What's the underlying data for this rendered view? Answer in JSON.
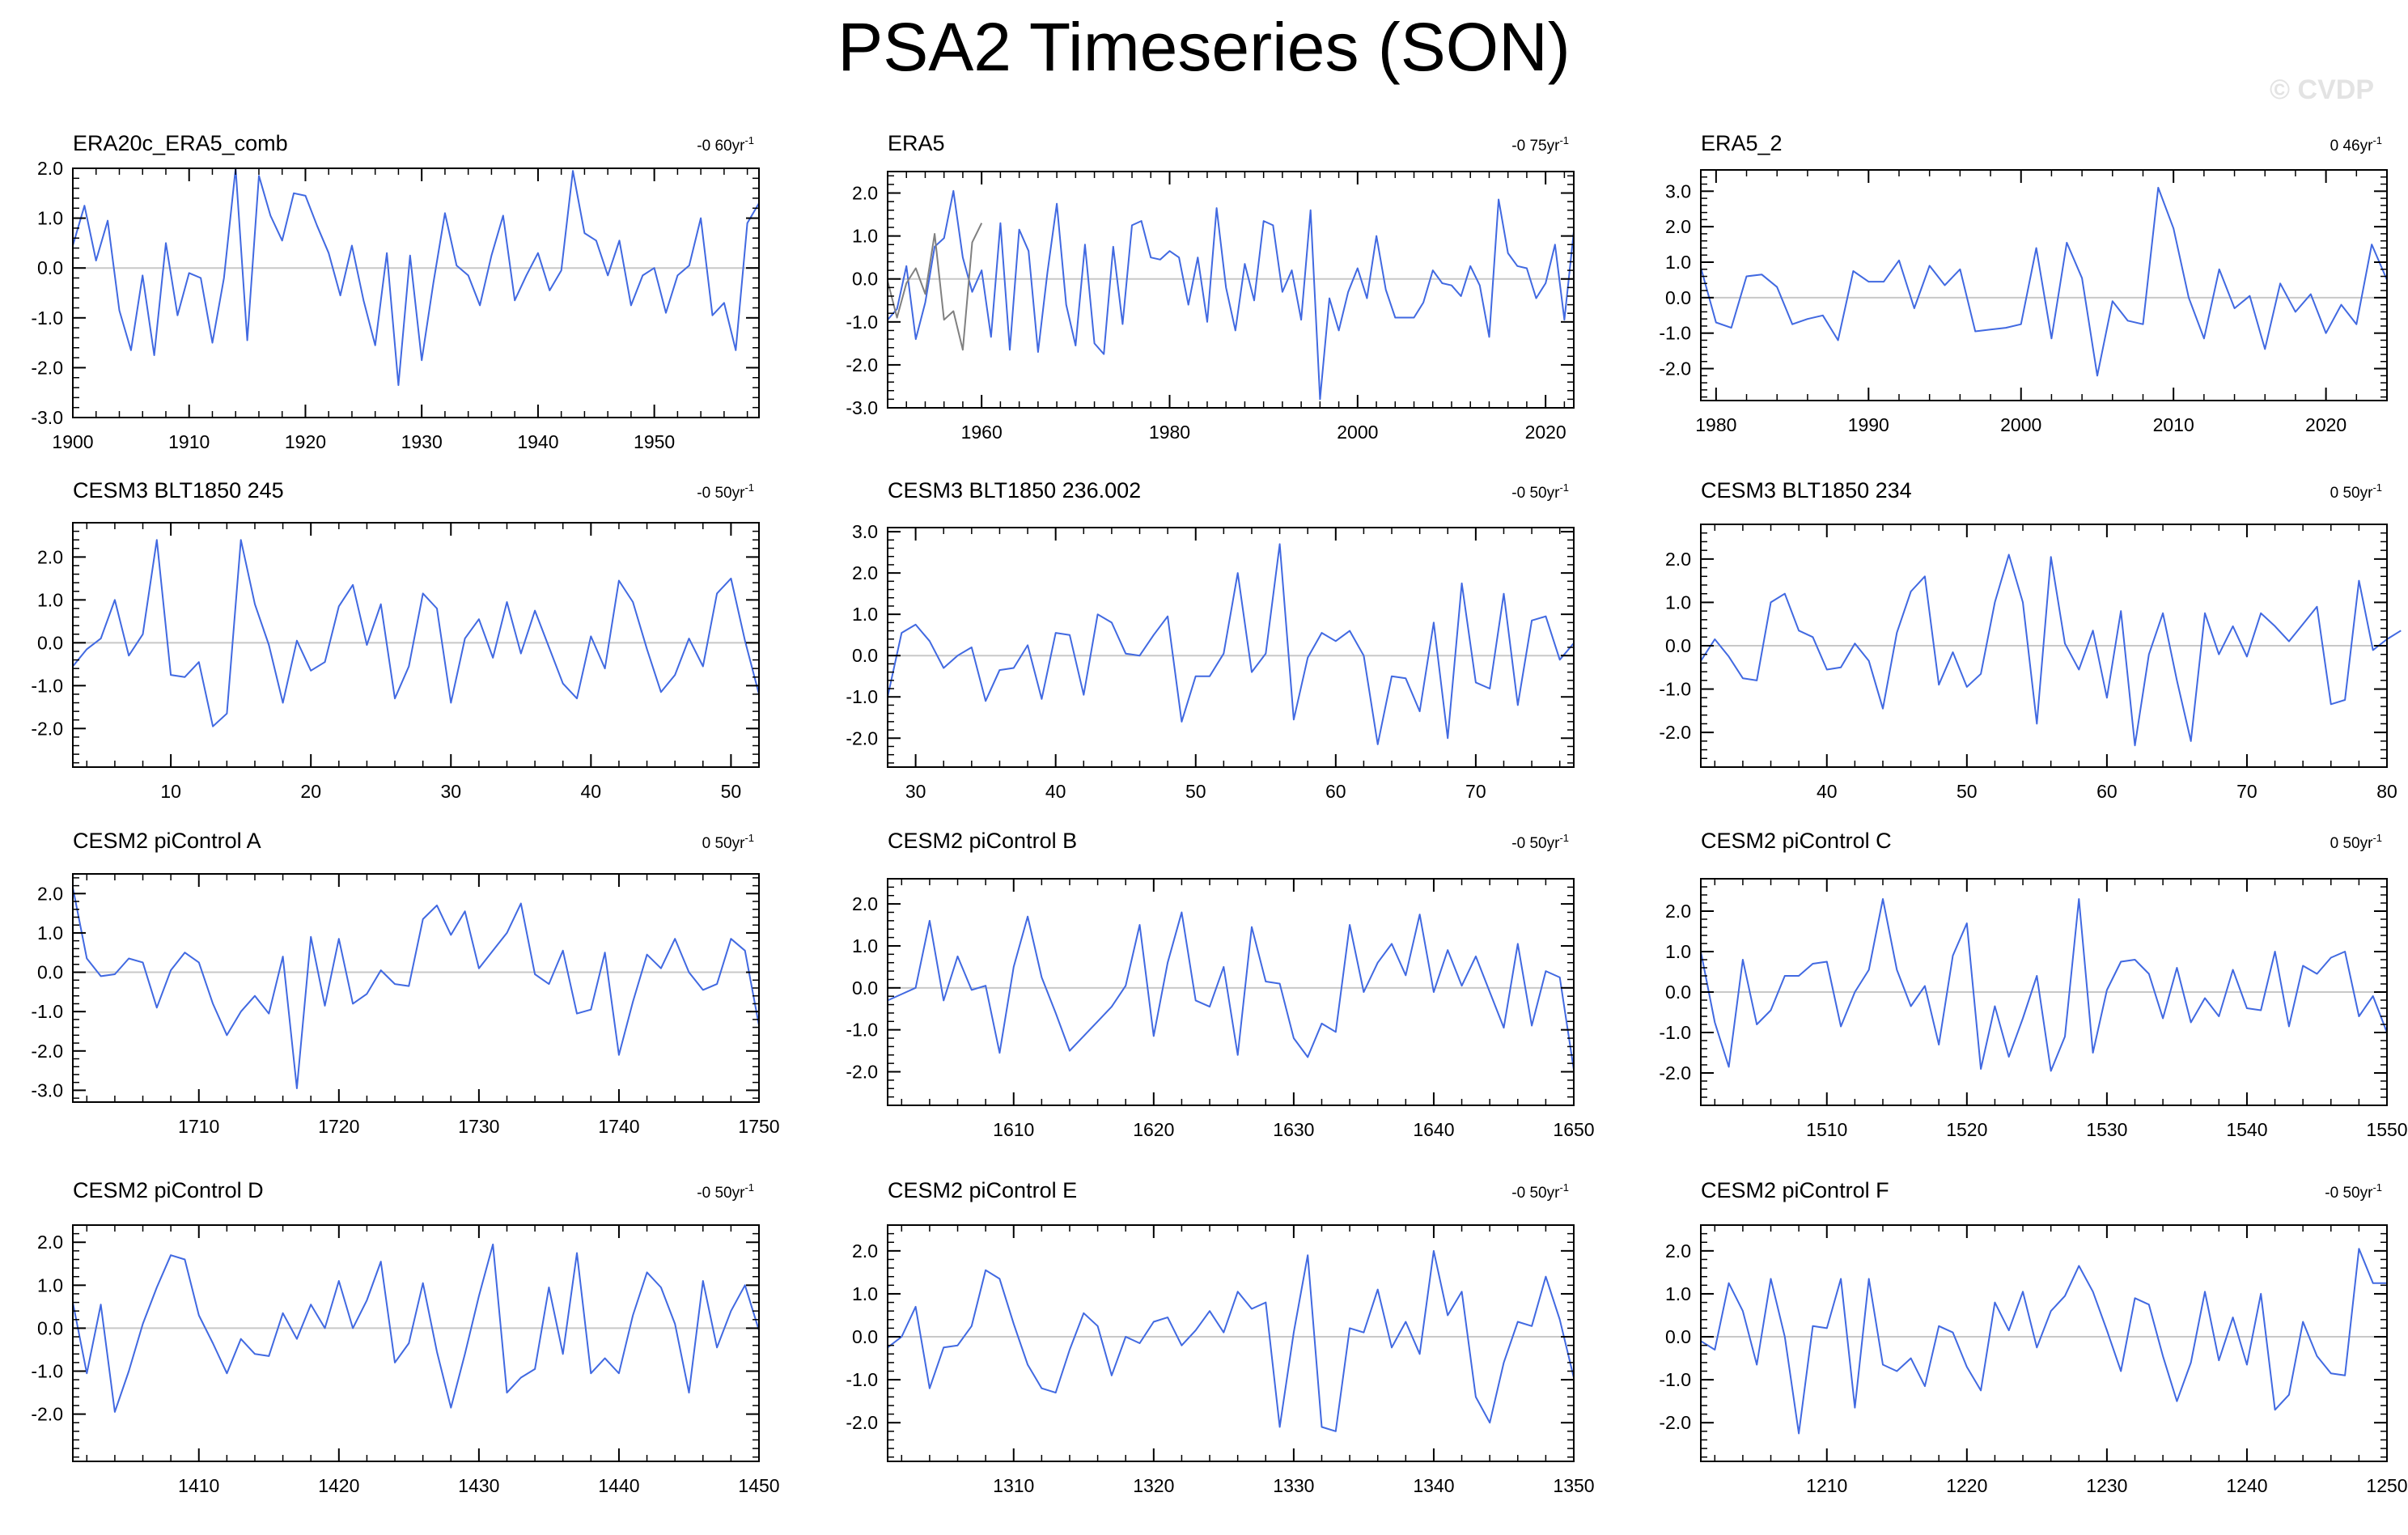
{
  "title": "PSA2 Timeseries (SON)",
  "watermark": "© CVDP",
  "colors": {
    "series": "#4169e1",
    "secondary": "#808080",
    "zero_line": "#c8c8c8",
    "axis": "#000000"
  },
  "chart_data": [
    {
      "type": "line",
      "title": "ERA20c_ERA5_comb",
      "trend": {
        "value": "-0 60",
        "unit": "yr",
        "exp": "-1"
      },
      "xlim": [
        1900,
        1959
      ],
      "ylim": [
        -3,
        2
      ],
      "xticks": [
        1900,
        1910,
        1920,
        1930,
        1940,
        1950
      ],
      "yticks": [
        -3,
        -2,
        -1,
        0,
        1,
        2
      ],
      "series": [
        {
          "x_start": 1900,
          "x_step": 1,
          "color": "#4169e1",
          "values": [
            0.45,
            1.25,
            0.15,
            0.95,
            -0.85,
            -1.65,
            -0.15,
            -1.75,
            0.5,
            -0.95,
            -0.1,
            -0.2,
            -1.5,
            -0.2,
            2.0,
            -1.45,
            1.85,
            1.05,
            0.55,
            1.5,
            1.45,
            0.85,
            0.3,
            -0.55,
            0.45,
            -0.65,
            -1.55,
            0.3,
            -2.35,
            0.25,
            -1.85,
            -0.3,
            1.1,
            0.05,
            -0.15,
            -0.75,
            0.25,
            1.05,
            -0.65,
            -0.15,
            0.3,
            -0.45,
            -0.05,
            1.95,
            0.7,
            0.55,
            -0.15,
            0.55,
            -0.75,
            -0.15,
            0.0,
            -0.9,
            -0.15,
            0.05,
            1.0,
            -0.95,
            -0.7,
            -1.65,
            0.9,
            1.3
          ]
        }
      ]
    },
    {
      "type": "line",
      "title": "ERA5",
      "trend": {
        "value": "-0 75",
        "unit": "yr",
        "exp": "-1"
      },
      "xlim": [
        1950,
        2023
      ],
      "ylim": [
        -3,
        2.5
      ],
      "xticks": [
        1960,
        1980,
        2000,
        2020
      ],
      "yticks": [
        -3,
        -2,
        -1,
        0,
        1,
        2
      ],
      "series": [
        {
          "x_start": 1950,
          "x_step": 1,
          "color": "#4169e1",
          "values": [
            -0.95,
            -0.7,
            0.3,
            -1.4,
            -0.55,
            0.75,
            0.95,
            2.05,
            0.5,
            -0.3,
            0.2,
            -1.35,
            1.3,
            -1.65,
            1.15,
            0.65,
            -1.7,
            0.15,
            1.75,
            -0.6,
            -1.55,
            0.8,
            -1.5,
            -1.75,
            0.75,
            -1.05,
            1.25,
            1.35,
            0.5,
            0.45,
            0.65,
            0.5,
            -0.6,
            0.5,
            -1.0,
            1.65,
            -0.2,
            -1.2,
            0.35,
            -0.5,
            1.35,
            1.25,
            -0.3,
            0.2,
            -0.95,
            1.6,
            -2.8,
            -0.45,
            -1.2,
            -0.3,
            0.25,
            -0.45,
            1.0,
            -0.25,
            -0.9,
            -0.9,
            -0.9,
            -0.55,
            0.2,
            -0.1,
            -0.15,
            -0.4,
            0.3,
            -0.15,
            -1.35,
            1.85,
            0.6,
            0.3,
            0.25,
            -0.45,
            -0.1,
            0.8,
            -0.95,
            1.1
          ]
        },
        {
          "x_start": 1950,
          "x_step": 1,
          "color": "#808080",
          "values": [
            -0.05,
            -0.9,
            -0.1,
            0.25,
            -0.35,
            1.05,
            -0.95,
            -0.75,
            -1.65,
            0.85,
            1.3
          ]
        }
      ]
    },
    {
      "type": "line",
      "title": "ERA5_2",
      "trend": {
        "value": "0 46",
        "unit": "yr",
        "exp": "-1"
      },
      "xlim": [
        1979,
        2024
      ],
      "ylim": [
        -2.9,
        3.6
      ],
      "xticks": [
        1980,
        1990,
        2000,
        2010,
        2020
      ],
      "yticks": [
        -2,
        -1,
        0,
        1,
        2,
        3
      ],
      "series": [
        {
          "x_start": 1979,
          "x_step": 1,
          "color": "#4169e1",
          "values": [
            0.85,
            -0.7,
            -0.85,
            0.6,
            0.65,
            0.3,
            -0.75,
            -0.6,
            -0.5,
            -1.2,
            0.75,
            0.45,
            0.45,
            1.05,
            -0.3,
            0.9,
            0.35,
            0.8,
            -0.95,
            -0.9,
            -0.85,
            -0.75,
            1.4,
            -1.15,
            1.55,
            0.55,
            -2.2,
            -0.1,
            -0.65,
            -0.75,
            3.1,
            1.95,
            0.0,
            -1.15,
            0.8,
            -0.3,
            0.05,
            -1.45,
            0.4,
            -0.4,
            0.1,
            -1.0,
            -0.2,
            -0.75,
            1.5,
            0.5
          ]
        }
      ]
    },
    {
      "type": "line",
      "title": "CESM3 BLT1850 245",
      "trend": {
        "value": "-0 50",
        "unit": "yr",
        "exp": "-1"
      },
      "xlim": [
        3,
        52
      ],
      "ylim": [
        -2.9,
        2.8
      ],
      "xticks": [
        10,
        20,
        30,
        40,
        50
      ],
      "yticks": [
        -2,
        -1,
        0,
        1,
        2
      ],
      "series": [
        {
          "x_start": 3,
          "x_step": 1,
          "color": "#4169e1",
          "values": [
            -0.55,
            -0.15,
            0.1,
            1.0,
            -0.3,
            0.2,
            2.4,
            -0.75,
            -0.8,
            -0.45,
            -1.95,
            -1.65,
            2.4,
            0.9,
            -0.05,
            -1.4,
            0.05,
            -0.65,
            -0.45,
            0.85,
            1.35,
            -0.05,
            0.9,
            -1.3,
            -0.55,
            1.15,
            0.8,
            -1.4,
            0.1,
            0.55,
            -0.35,
            0.95,
            -0.25,
            0.75,
            -0.1,
            -0.95,
            -1.3,
            0.15,
            -0.6,
            1.45,
            0.95,
            -0.15,
            -1.15,
            -0.75,
            0.1,
            -0.55,
            1.15,
            1.5,
            0.05,
            -1.2
          ]
        }
      ]
    },
    {
      "type": "line",
      "title": "CESM3 BLT1850 236.002",
      "trend": {
        "value": "-0 50",
        "unit": "yr",
        "exp": "-1"
      },
      "xlim": [
        28,
        77
      ],
      "ylim": [
        -2.7,
        3.1
      ],
      "xticks": [
        30,
        40,
        50,
        60,
        70
      ],
      "yticks": [
        -2,
        -1,
        0,
        1,
        2,
        3
      ],
      "series": [
        {
          "x_start": 28,
          "x_step": 1,
          "color": "#4169e1",
          "values": [
            -1.0,
            0.55,
            0.75,
            0.35,
            -0.3,
            0.0,
            0.2,
            -1.1,
            -0.35,
            -0.3,
            0.25,
            -1.05,
            0.55,
            0.5,
            -0.95,
            1.0,
            0.8,
            0.05,
            0.0,
            0.5,
            0.95,
            -1.6,
            -0.5,
            -0.5,
            0.05,
            2.0,
            -0.4,
            0.05,
            2.7,
            -1.55,
            -0.05,
            0.55,
            0.35,
            0.6,
            0.0,
            -2.15,
            -0.5,
            -0.55,
            -1.35,
            0.8,
            -2.0,
            1.75,
            -0.65,
            -0.8,
            1.5,
            -1.2,
            0.85,
            0.95,
            -0.1,
            0.3
          ]
        }
      ]
    },
    {
      "type": "line",
      "title": "CESM3 BLT1850 234",
      "trend": {
        "value": "0 50",
        "unit": "yr",
        "exp": "-1"
      },
      "xlim": [
        31,
        80
      ],
      "ylim": [
        -2.8,
        2.8
      ],
      "xticks": [
        40,
        50,
        60,
        70,
        80
      ],
      "yticks": [
        -2,
        -1,
        0,
        1,
        2
      ],
      "series": [
        {
          "x_start": 31,
          "x_step": 1,
          "color": "#4169e1",
          "values": [
            -0.35,
            0.15,
            -0.25,
            -0.75,
            -0.8,
            1.0,
            1.2,
            0.35,
            0.2,
            -0.55,
            -0.5,
            0.05,
            -0.35,
            -1.45,
            0.3,
            1.25,
            1.6,
            -0.9,
            -0.15,
            -0.95,
            -0.65,
            1.0,
            2.1,
            1.0,
            -1.8,
            2.05,
            0.05,
            -0.55,
            0.35,
            -1.2,
            0.8,
            -2.3,
            -0.2,
            0.75,
            -0.8,
            -2.2,
            0.75,
            -0.2,
            0.45,
            -0.25,
            0.75,
            0.45,
            0.1,
            0.5,
            0.9,
            -1.35,
            -1.25,
            1.5,
            -0.1,
            0.15,
            0.35
          ]
        }
      ]
    },
    {
      "type": "line",
      "title": "CESM2 piControl A",
      "trend": {
        "value": "0 50",
        "unit": "yr",
        "exp": "-1"
      },
      "xlim": [
        1701,
        1750
      ],
      "ylim": [
        -3.3,
        2.5
      ],
      "xticks": [
        1710,
        1720,
        1730,
        1740,
        1750
      ],
      "yticks": [
        -3,
        -2,
        -1,
        0,
        1,
        2
      ],
      "series": [
        {
          "x_start": 1701,
          "x_step": 1,
          "color": "#4169e1",
          "values": [
            2.15,
            0.35,
            -0.1,
            -0.05,
            0.35,
            0.25,
            -0.9,
            0.05,
            0.5,
            0.25,
            -0.8,
            -1.6,
            -1.0,
            -0.6,
            -1.05,
            0.4,
            -2.95,
            0.9,
            -0.85,
            0.85,
            -0.8,
            -0.55,
            0.05,
            -0.3,
            -0.35,
            1.35,
            1.7,
            0.95,
            1.55,
            0.1,
            0.55,
            1.0,
            1.75,
            -0.05,
            -0.3,
            0.55,
            -1.05,
            -0.95,
            0.5,
            -2.1,
            -0.75,
            0.45,
            0.1,
            0.85,
            0.0,
            -0.45,
            -0.3,
            0.85,
            0.55,
            -1.35
          ]
        }
      ]
    },
    {
      "type": "line",
      "title": "CESM2 piControl B",
      "trend": {
        "value": "-0 50",
        "unit": "yr",
        "exp": "-1"
      },
      "xlim": [
        1601,
        1650
      ],
      "ylim": [
        -2.8,
        2.6
      ],
      "xticks": [
        1610,
        1620,
        1630,
        1640,
        1650
      ],
      "yticks": [
        -2,
        -1,
        0,
        1,
        2
      ],
      "series": [
        {
          "x_start": 1601,
          "x_step": 1,
          "color": "#4169e1",
          "values": [
            -0.3,
            -0.15,
            0.0,
            1.6,
            -0.3,
            0.75,
            -0.05,
            0.05,
            -1.55,
            0.5,
            1.7,
            0.25,
            -0.6,
            -1.5,
            -1.15,
            -0.8,
            -0.45,
            0.05,
            1.5,
            -1.15,
            0.6,
            1.8,
            -0.3,
            -0.45,
            0.5,
            -1.6,
            1.45,
            0.15,
            0.1,
            -1.2,
            -1.65,
            -0.85,
            -1.05,
            1.5,
            -0.1,
            0.6,
            1.05,
            0.3,
            1.75,
            -0.1,
            0.9,
            0.05,
            0.75,
            -0.1,
            -0.95,
            1.05,
            -0.9,
            0.4,
            0.25,
            -1.95
          ]
        }
      ]
    },
    {
      "type": "line",
      "title": "CESM2 piControl C",
      "trend": {
        "value": "0 50",
        "unit": "yr",
        "exp": "-1"
      },
      "xlim": [
        1501,
        1550
      ],
      "ylim": [
        -2.8,
        2.8
      ],
      "xticks": [
        1510,
        1520,
        1530,
        1540,
        1550
      ],
      "yticks": [
        -2,
        -1,
        0,
        1,
        2
      ],
      "series": [
        {
          "x_start": 1501,
          "x_step": 1,
          "color": "#4169e1",
          "values": [
            1.0,
            -0.75,
            -1.85,
            0.8,
            -0.8,
            -0.45,
            0.4,
            0.4,
            0.7,
            0.75,
            -0.85,
            0.0,
            0.55,
            2.3,
            0.55,
            -0.35,
            0.15,
            -1.3,
            0.9,
            1.7,
            -1.9,
            -0.35,
            -1.6,
            -0.65,
            0.4,
            -1.95,
            -1.1,
            2.3,
            -1.5,
            0.05,
            0.75,
            0.8,
            0.45,
            -0.65,
            0.6,
            -0.75,
            -0.15,
            -0.6,
            0.55,
            -0.4,
            -0.45,
            1.0,
            -0.85,
            0.65,
            0.45,
            0.85,
            1.0,
            -0.6,
            -0.1,
            -1.0
          ]
        }
      ]
    },
    {
      "type": "line",
      "title": "CESM2 piControl D",
      "trend": {
        "value": "-0 50",
        "unit": "yr",
        "exp": "-1"
      },
      "xlim": [
        1401,
        1450
      ],
      "ylim": [
        -3.1,
        2.4
      ],
      "xticks": [
        1410,
        1420,
        1430,
        1440,
        1450
      ],
      "yticks": [
        -2,
        -1,
        0,
        1,
        2
      ],
      "series": [
        {
          "x_start": 1401,
          "x_step": 1,
          "color": "#4169e1",
          "values": [
            0.6,
            -1.05,
            0.55,
            -1.95,
            -1.0,
            0.1,
            0.95,
            1.7,
            1.6,
            0.3,
            -0.35,
            -1.05,
            -0.25,
            -0.6,
            -0.65,
            0.35,
            -0.25,
            0.55,
            0.0,
            1.1,
            0.0,
            0.65,
            1.55,
            -0.8,
            -0.35,
            1.05,
            -0.55,
            -1.85,
            -0.6,
            0.75,
            1.95,
            -1.5,
            -1.15,
            -0.95,
            0.95,
            -0.6,
            1.75,
            -1.05,
            -0.7,
            -1.05,
            0.3,
            1.3,
            0.95,
            0.1,
            -1.5,
            1.1,
            -0.45,
            0.4,
            1.0,
            -0.05
          ]
        }
      ]
    },
    {
      "type": "line",
      "title": "CESM2 piControl E",
      "trend": {
        "value": "-0 50",
        "unit": "yr",
        "exp": "-1"
      },
      "xlim": [
        1301,
        1350
      ],
      "ylim": [
        -2.9,
        2.6
      ],
      "xticks": [
        1310,
        1320,
        1330,
        1340,
        1350
      ],
      "yticks": [
        -2,
        -1,
        0,
        1,
        2
      ],
      "series": [
        {
          "x_start": 1301,
          "x_step": 1,
          "color": "#4169e1",
          "values": [
            -0.25,
            0.0,
            0.7,
            -1.2,
            -0.25,
            -0.2,
            0.25,
            1.55,
            1.35,
            0.3,
            -0.65,
            -1.2,
            -1.3,
            -0.3,
            0.55,
            0.25,
            -0.9,
            0.0,
            -0.15,
            0.35,
            0.45,
            -0.2,
            0.15,
            0.6,
            0.1,
            1.05,
            0.65,
            0.8,
            -2.1,
            0.1,
            1.9,
            -2.1,
            -2.2,
            0.2,
            0.1,
            1.1,
            -0.25,
            0.35,
            -0.4,
            2.0,
            0.5,
            1.05,
            -1.4,
            -2.0,
            -0.6,
            0.35,
            0.25,
            1.4,
            0.4,
            -0.95
          ]
        }
      ]
    },
    {
      "type": "line",
      "title": "CESM2 piControl F",
      "trend": {
        "value": "-0 50",
        "unit": "yr",
        "exp": "-1"
      },
      "xlim": [
        1201,
        1250
      ],
      "ylim": [
        -2.9,
        2.6
      ],
      "xticks": [
        1210,
        1220,
        1230,
        1240,
        1250
      ],
      "yticks": [
        -2,
        -1,
        0,
        1,
        2
      ],
      "series": [
        {
          "x_start": 1201,
          "x_step": 1,
          "color": "#4169e1",
          "values": [
            -0.1,
            -0.3,
            1.25,
            0.6,
            -0.65,
            1.35,
            0.0,
            -2.25,
            0.25,
            0.2,
            1.35,
            -1.65,
            1.35,
            -0.65,
            -0.8,
            -0.5,
            -1.15,
            0.25,
            0.1,
            -0.7,
            -1.25,
            0.8,
            0.15,
            1.05,
            -0.25,
            0.6,
            0.95,
            1.65,
            1.05,
            0.15,
            -0.8,
            0.9,
            0.75,
            -0.45,
            -1.5,
            -0.6,
            1.05,
            -0.55,
            0.45,
            -0.65,
            1.0,
            -1.7,
            -1.35,
            0.35,
            -0.45,
            -0.85,
            -0.9,
            2.05,
            1.25,
            1.25
          ]
        }
      ]
    }
  ]
}
